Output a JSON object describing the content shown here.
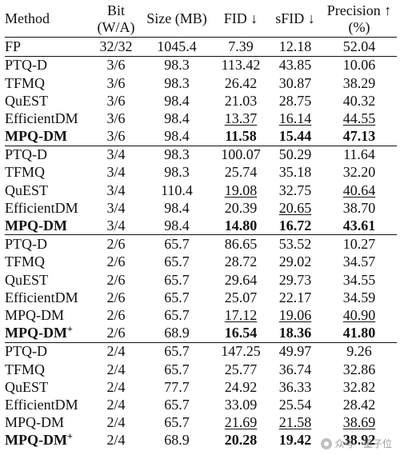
{
  "headers": {
    "method": "Method",
    "bit_line1": "Bit",
    "bit_line2": "(W/A)",
    "size": "Size (MB)",
    "fid": "FID ↓",
    "sfid": "sFID ↓",
    "precision_line1": "Precision ↑",
    "precision_line2": "(%)"
  },
  "rows": [
    {
      "method": "FP",
      "bit": "32/32",
      "size": "1045.4",
      "fid": "7.39",
      "sfid": "12.18",
      "precision": "52.04"
    },
    {
      "method": "PTQ-D",
      "bit": "3/6",
      "size": "98.3",
      "fid": "113.42",
      "sfid": "43.85",
      "precision": "10.06"
    },
    {
      "method": "TFMQ",
      "bit": "3/6",
      "size": "98.3",
      "fid": "26.42",
      "sfid": "30.87",
      "precision": "38.29"
    },
    {
      "method": "QuEST",
      "bit": "3/6",
      "size": "98.4",
      "fid": "21.03",
      "sfid": "28.75",
      "precision": "40.32"
    },
    {
      "method": "EfficientDM",
      "bit": "3/6",
      "size": "98.4",
      "fid": "13.37",
      "sfid": "16.14",
      "precision": "44.55"
    },
    {
      "method": "MPQ-DM",
      "bit": "3/6",
      "size": "98.4",
      "fid": "11.58",
      "sfid": "15.44",
      "precision": "47.13"
    },
    {
      "method": "PTQ-D",
      "bit": "3/4",
      "size": "98.3",
      "fid": "100.07",
      "sfid": "50.29",
      "precision": "11.64"
    },
    {
      "method": "TFMQ",
      "bit": "3/4",
      "size": "98.3",
      "fid": "25.74",
      "sfid": "35.18",
      "precision": "32.20"
    },
    {
      "method": "QuEST",
      "bit": "3/4",
      "size": "110.4",
      "fid": "19.08",
      "sfid": "32.75",
      "precision": "40.64"
    },
    {
      "method": "EfficientDM",
      "bit": "3/4",
      "size": "98.4",
      "fid": "20.39",
      "sfid": "20.65",
      "precision": "38.70"
    },
    {
      "method": "MPQ-DM",
      "bit": "3/4",
      "size": "98.4",
      "fid": "14.80",
      "sfid": "16.72",
      "precision": "43.61"
    },
    {
      "method": "PTQ-D",
      "bit": "2/6",
      "size": "65.7",
      "fid": "86.65",
      "sfid": "53.52",
      "precision": "10.27"
    },
    {
      "method": "TFMQ",
      "bit": "2/6",
      "size": "65.7",
      "fid": "28.72",
      "sfid": "29.02",
      "precision": "34.57"
    },
    {
      "method": "QuEST",
      "bit": "2/6",
      "size": "65.7",
      "fid": "29.64",
      "sfid": "29.73",
      "precision": "34.55"
    },
    {
      "method": "EfficientDM",
      "bit": "2/6",
      "size": "65.7",
      "fid": "25.07",
      "sfid": "22.17",
      "precision": "34.59"
    },
    {
      "method": "MPQ-DM",
      "bit": "2/6",
      "size": "65.7",
      "fid": "17.12",
      "sfid": "19.06",
      "precision": "40.90"
    },
    {
      "method": "MPQ-DM",
      "method_sup": "+",
      "bit": "2/6",
      "size": "68.9",
      "fid": "16.54",
      "sfid": "18.36",
      "precision": "41.80"
    },
    {
      "method": "PTQ-D",
      "bit": "2/4",
      "size": "65.7",
      "fid": "147.25",
      "sfid": "49.97",
      "precision": "9.26"
    },
    {
      "method": "TFMQ",
      "bit": "2/4",
      "size": "65.7",
      "fid": "25.77",
      "sfid": "36.74",
      "precision": "32.86"
    },
    {
      "method": "QuEST",
      "bit": "2/4",
      "size": "77.7",
      "fid": "24.92",
      "sfid": "36.33",
      "precision": "32.82"
    },
    {
      "method": "EfficientDM",
      "bit": "2/4",
      "size": "65.7",
      "fid": "33.09",
      "sfid": "25.54",
      "precision": "28.42"
    },
    {
      "method": "MPQ-DM",
      "bit": "2/4",
      "size": "65.7",
      "fid": "21.69",
      "sfid": "21.58",
      "precision": "38.69"
    },
    {
      "method": "MPQ-DM",
      "method_sup": "+",
      "bit": "2/4",
      "size": "68.9",
      "fid": "20.28",
      "sfid": "19.42",
      "precision": "38.92"
    }
  ],
  "watermark": {
    "text": "众号 · 量子位",
    "icon": "wechat-icon"
  }
}
